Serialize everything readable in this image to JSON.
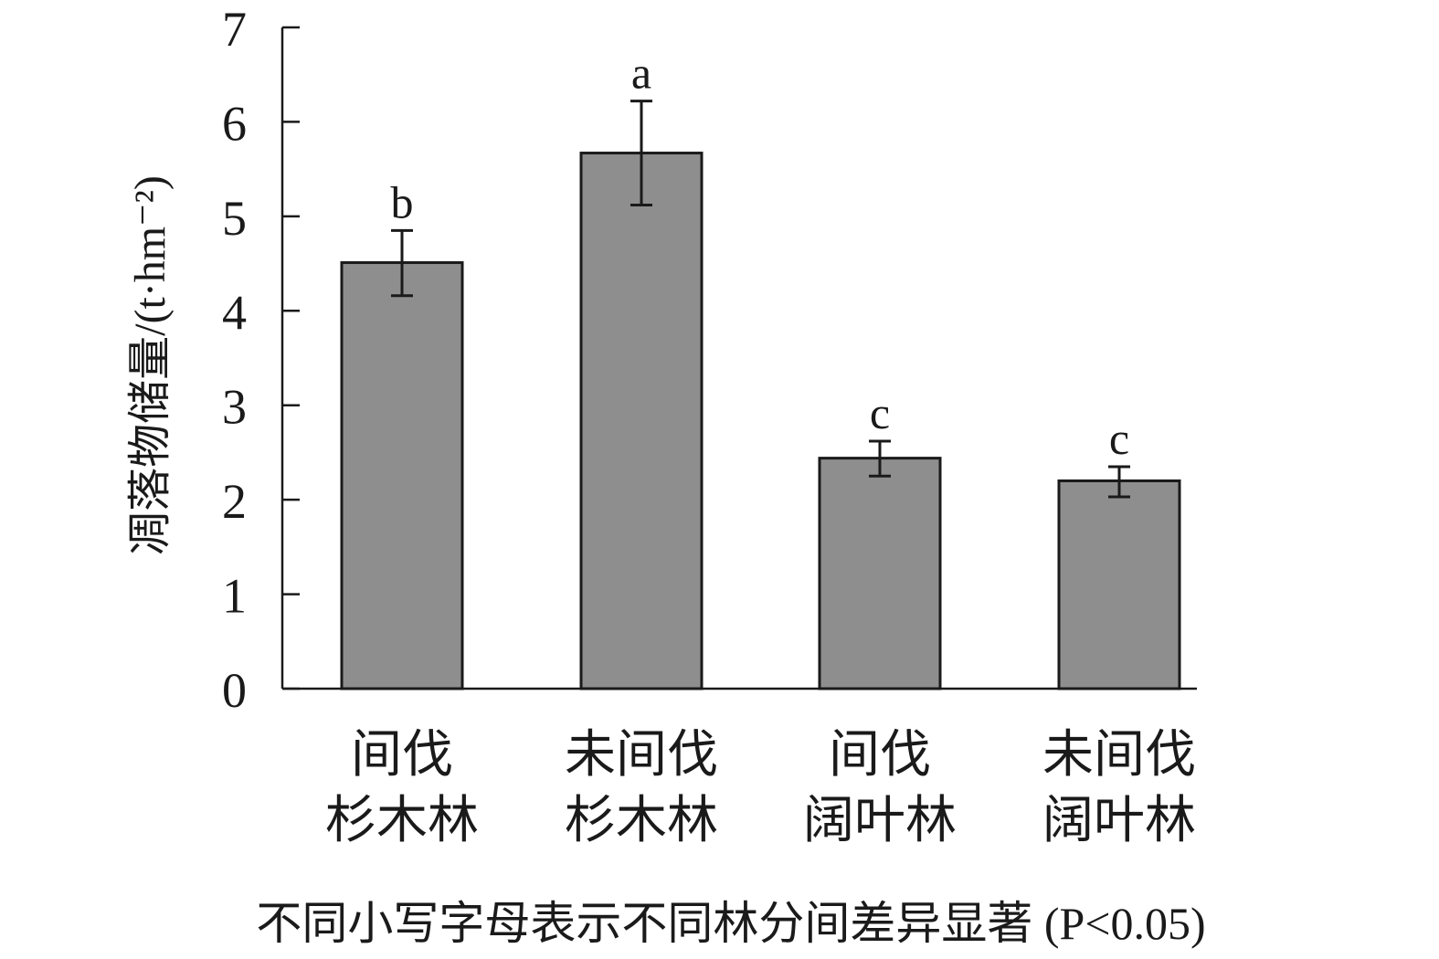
{
  "chart_data": {
    "type": "bar",
    "ylabel": "凋落物储量/(t·hm⁻²)",
    "xlabel": "",
    "ylim": [
      0,
      7
    ],
    "yticks": [
      0,
      1,
      2,
      3,
      4,
      5,
      6,
      7
    ],
    "categories": [
      [
        "间伐",
        "杉木林"
      ],
      [
        "未间伐",
        "杉木林"
      ],
      [
        "间伐",
        "阔叶林"
      ],
      [
        "未间伐",
        "阔叶林"
      ]
    ],
    "values": [
      4.51,
      5.67,
      2.44,
      2.2
    ],
    "error_upper": [
      4.85,
      6.22,
      2.62,
      2.35
    ],
    "error_lower": [
      4.16,
      5.12,
      2.25,
      2.03
    ],
    "significance_letters": [
      "b",
      "a",
      "c",
      "c"
    ],
    "bar_color": "#8f8e8f",
    "grid": false,
    "note": "不同小写字母表示不同林分间差异显著 (P<0.05)"
  }
}
